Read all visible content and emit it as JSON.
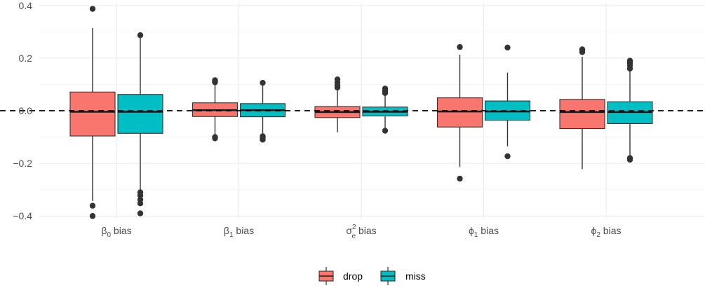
{
  "chart_data": {
    "type": "boxplot",
    "categories": [
      {
        "greek": "β",
        "sub": "0",
        "sup": "",
        "suffix": " bias"
      },
      {
        "greek": "β",
        "sub": "1",
        "sup": "",
        "suffix": " bias"
      },
      {
        "greek": "σ",
        "sub": "e",
        "sup": "2",
        "suffix": " bias"
      },
      {
        "greek": "ϕ",
        "sub": "1",
        "sup": "",
        "suffix": " bias"
      },
      {
        "greek": "ϕ",
        "sub": "2",
        "sup": "",
        "suffix": " bias"
      }
    ],
    "ylim": [
      -0.41,
      0.41
    ],
    "yticks": [
      -0.4,
      -0.2,
      0.0,
      0.2,
      0.4
    ],
    "ytick_labels": [
      "−0.4",
      "−0.2",
      "0.0",
      "0.2",
      "0.4"
    ],
    "reference_line": 0,
    "grid": true,
    "legend_position": "bottom",
    "series": [
      {
        "name": "drop",
        "color": "#F8766D",
        "boxes": [
          {
            "q1": -0.096,
            "median": -0.004,
            "q3": 0.071,
            "whisker_low": -0.343,
            "whisker_high": 0.314,
            "outliers": [
              0.387,
              -0.361,
              -0.4
            ]
          },
          {
            "q1": -0.022,
            "median": 0.002,
            "q3": 0.03,
            "whisker_low": -0.097,
            "whisker_high": 0.102,
            "outliers": [
              0.116,
              0.111,
              0.108,
              -0.1,
              -0.105
            ]
          },
          {
            "q1": -0.026,
            "median": -0.005,
            "q3": 0.016,
            "whisker_low": -0.082,
            "whisker_high": 0.078,
            "outliers": [
              0.119,
              0.107,
              0.096,
              0.088
            ]
          },
          {
            "q1": -0.062,
            "median": -0.003,
            "q3": 0.049,
            "whisker_low": -0.214,
            "whisker_high": 0.213,
            "outliers": [
              0.242,
              -0.258
            ]
          },
          {
            "q1": -0.068,
            "median": -0.005,
            "q3": 0.043,
            "whisker_low": -0.222,
            "whisker_high": 0.205,
            "outliers": [
              0.233,
              0.228,
              0.223
            ]
          }
        ]
      },
      {
        "name": "miss",
        "color": "#00BFC4",
        "boxes": [
          {
            "q1": -0.086,
            "median": -0.004,
            "q3": 0.062,
            "whisker_low": -0.3,
            "whisker_high": 0.28,
            "outliers": [
              0.287,
              -0.31,
              -0.322,
              -0.338,
              -0.352,
              -0.39
            ]
          },
          {
            "q1": -0.023,
            "median": 0.002,
            "q3": 0.027,
            "whisker_low": -0.093,
            "whisker_high": 0.096,
            "outliers": [
              0.106,
              -0.097,
              -0.104,
              -0.11
            ]
          },
          {
            "q1": -0.02,
            "median": -0.004,
            "q3": 0.014,
            "whisker_low": -0.07,
            "whisker_high": 0.06,
            "outliers": [
              0.084,
              0.078,
              0.072,
              0.067,
              -0.076
            ]
          },
          {
            "q1": -0.036,
            "median": -0.003,
            "q3": 0.037,
            "whisker_low": -0.135,
            "whisker_high": 0.145,
            "outliers": [
              0.24,
              -0.173
            ]
          },
          {
            "q1": -0.049,
            "median": -0.005,
            "q3": 0.034,
            "whisker_low": -0.17,
            "whisker_high": 0.15,
            "outliers": [
              0.19,
              0.182,
              0.172,
              0.16,
              -0.18,
              -0.186
            ]
          }
        ]
      }
    ]
  }
}
